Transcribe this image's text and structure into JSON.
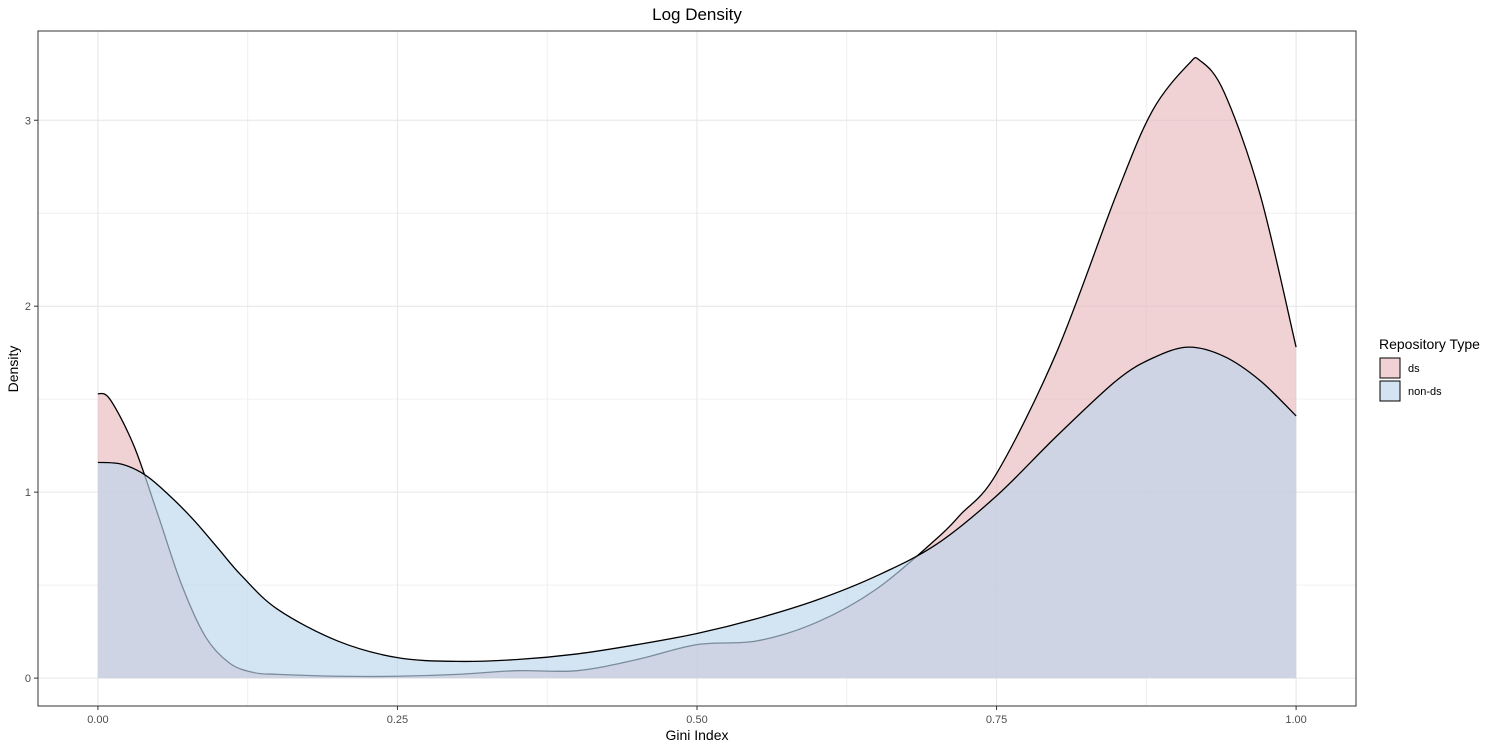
{
  "chart_data": {
    "type": "area",
    "title": "Log Density",
    "xlabel": "Gini Index",
    "ylabel": "Density",
    "xlim": [
      -0.05,
      1.05
    ],
    "ylim": [
      -0.15,
      3.48
    ],
    "x_ticks": [
      "0.00",
      "0.25",
      "0.50",
      "0.75",
      "1.00"
    ],
    "y_ticks": [
      "0",
      "1",
      "2",
      "3"
    ],
    "grid": true,
    "legend": {
      "title": "Repository Type",
      "position": "right"
    },
    "series": [
      {
        "name": "ds",
        "fill": "#e8b9bd",
        "x": [
          0.0,
          0.01,
          0.03,
          0.05,
          0.07,
          0.09,
          0.11,
          0.13,
          0.15,
          0.2,
          0.25,
          0.3,
          0.35,
          0.4,
          0.45,
          0.5,
          0.55,
          0.6,
          0.65,
          0.7,
          0.72,
          0.75,
          0.8,
          0.85,
          0.88,
          0.91,
          0.92,
          0.94,
          0.97,
          1.0
        ],
        "y": [
          1.53,
          1.5,
          1.25,
          0.88,
          0.5,
          0.22,
          0.08,
          0.03,
          0.02,
          0.01,
          0.01,
          0.02,
          0.04,
          0.04,
          0.1,
          0.18,
          0.2,
          0.3,
          0.48,
          0.75,
          0.88,
          1.1,
          1.75,
          2.6,
          3.05,
          3.3,
          3.32,
          3.15,
          2.6,
          1.78
        ]
      },
      {
        "name": "non-ds",
        "fill": "#bcd5ec",
        "x": [
          0.0,
          0.02,
          0.04,
          0.06,
          0.08,
          0.1,
          0.12,
          0.15,
          0.2,
          0.25,
          0.3,
          0.35,
          0.4,
          0.45,
          0.5,
          0.55,
          0.6,
          0.65,
          0.7,
          0.75,
          0.8,
          0.85,
          0.88,
          0.91,
          0.94,
          0.97,
          1.0
        ],
        "y": [
          1.16,
          1.15,
          1.09,
          0.98,
          0.85,
          0.7,
          0.55,
          0.37,
          0.2,
          0.11,
          0.09,
          0.1,
          0.13,
          0.18,
          0.24,
          0.32,
          0.42,
          0.55,
          0.72,
          0.98,
          1.3,
          1.6,
          1.72,
          1.78,
          1.73,
          1.6,
          1.41
        ]
      }
    ]
  }
}
